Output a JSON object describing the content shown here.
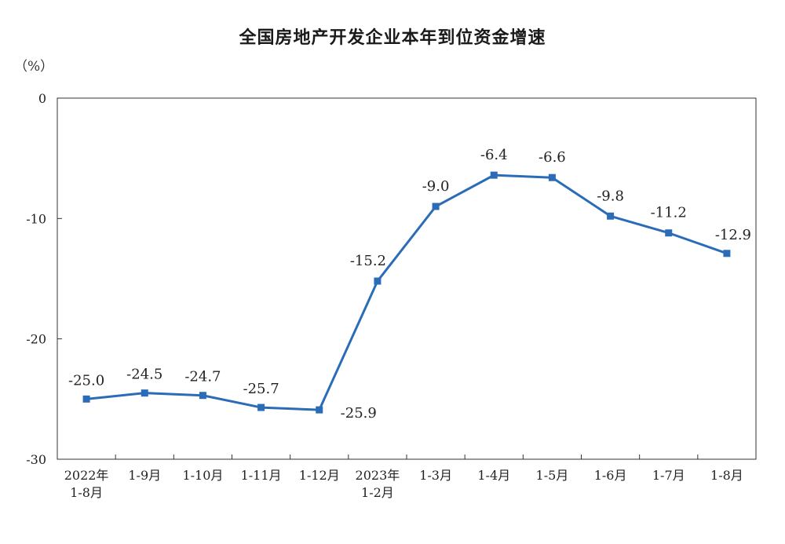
{
  "chart_data": {
    "type": "line",
    "title": "全国房地产开发企业本年到位资金增速",
    "unit_label": "（%）",
    "ylim": [
      -30,
      0
    ],
    "yticks": [
      0,
      -10,
      -20,
      -30
    ],
    "ytick_labels": [
      "0",
      "-10",
      "-20",
      "-30"
    ],
    "grid": false,
    "legend": "none",
    "categories": [
      [
        "2022年",
        "1-8月"
      ],
      [
        "1-9月"
      ],
      [
        "1-10月"
      ],
      [
        "1-11月"
      ],
      [
        "1-12月"
      ],
      [
        "2023年",
        "1-2月"
      ],
      [
        "1-3月"
      ],
      [
        "1-4月"
      ],
      [
        "1-5月"
      ],
      [
        "1-6月"
      ],
      [
        "1-7月"
      ],
      [
        "1-8月"
      ]
    ],
    "series": [
      {
        "values": [
          -25.0,
          -24.5,
          -24.7,
          -25.7,
          -25.9,
          -15.2,
          -9.0,
          -6.4,
          -6.6,
          -9.8,
          -11.2,
          -12.9
        ],
        "data_labels": [
          "-25.0",
          "-24.5",
          "-24.7",
          "-25.7",
          "-25.9",
          "-15.2",
          "-9.0",
          "-6.4",
          "-6.6",
          "-9.8",
          "-11.2",
          "-12.9"
        ],
        "color": "#2b6cb8"
      }
    ]
  }
}
